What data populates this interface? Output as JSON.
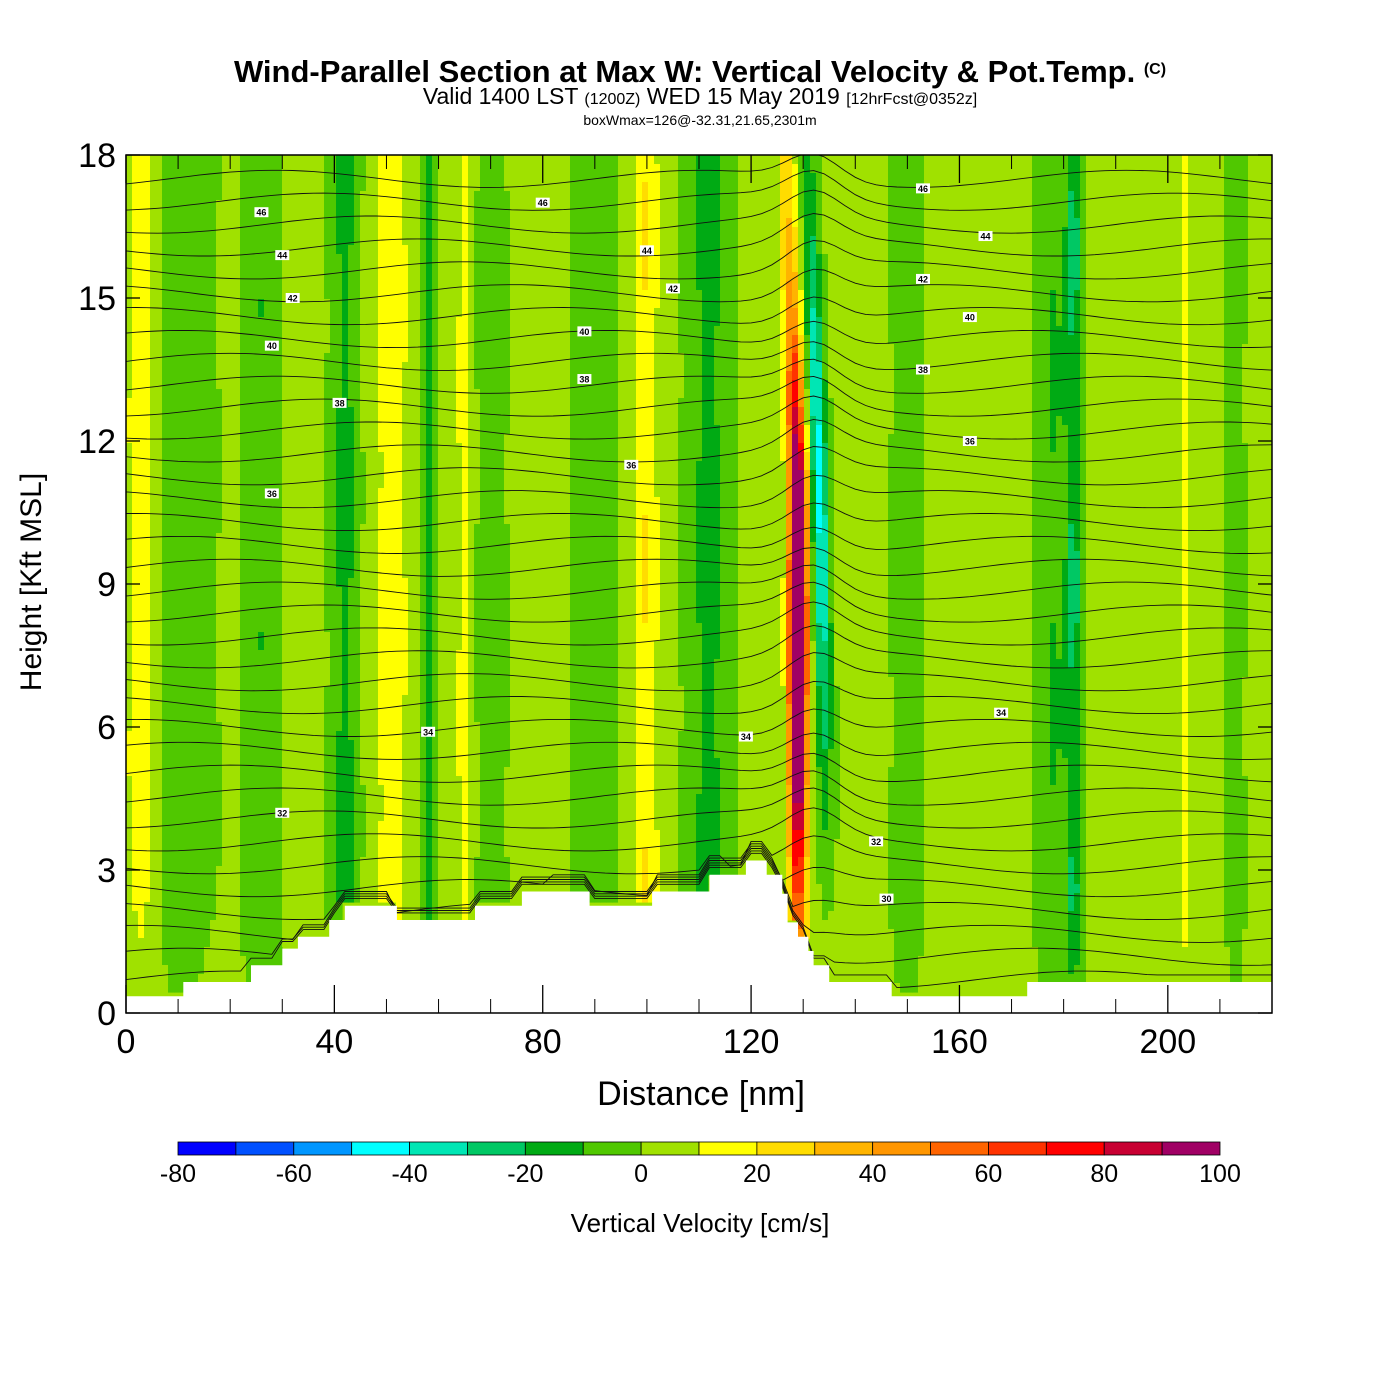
{
  "title": {
    "main": "Wind-Parallel Section at Max W: Vertical Velocity & Pot.Temp.",
    "copyright": "(C)",
    "valid_prefix": "Valid 1400 LST",
    "valid_z": "(1200Z)",
    "valid_date": "WED 15 May 2019",
    "forecast": "[12hrFcst@0352z]",
    "box_info": "boxWmax=126@-32.31,21.65,2301m"
  },
  "chart_data": {
    "type": "heatmap",
    "title": "Wind-Parallel Section at Max W: Vertical Velocity & Pot.Temp.",
    "xlabel": "Distance [nm]",
    "ylabel": "Height [Kft MSL]",
    "xlim": [
      0,
      220
    ],
    "ylim": [
      0,
      18
    ],
    "xticks": [
      "0",
      "40",
      "80",
      "120",
      "160",
      "200"
    ],
    "yticks": [
      "0",
      "3",
      "6",
      "9",
      "12",
      "15",
      "18"
    ],
    "colorbar": {
      "label": "Vertical Velocity [cm/s]",
      "levels": [
        -80,
        -70,
        -60,
        -50,
        -40,
        -30,
        -20,
        -10,
        0,
        10,
        20,
        30,
        40,
        50,
        60,
        70,
        80,
        90,
        100
      ],
      "tick_labels": [
        "-80",
        "-60",
        "-40",
        "-20",
        "0",
        "20",
        "40",
        "60",
        "80",
        "100"
      ],
      "colors": [
        "#0000ff",
        "#0050ff",
        "#0096ff",
        "#00ffff",
        "#00e6b4",
        "#00c864",
        "#00aa14",
        "#50c800",
        "#a0e100",
        "#ffff00",
        "#ffdc00",
        "#ffb400",
        "#ff9600",
        "#ff6400",
        "#ff3200",
        "#ff0000",
        "#c80032",
        "#a00064"
      ]
    },
    "background_w": 2,
    "bands": [
      {
        "x": 3,
        "w": 3,
        "cms": 18
      },
      {
        "x": 10,
        "w": 7,
        "cms": -8
      },
      {
        "x": 26,
        "w": 3,
        "cms": -12
      },
      {
        "x": 42,
        "w": 2.5,
        "cms": -18
      },
      {
        "x": 51,
        "w": 3,
        "cms": 18
      },
      {
        "x": 58,
        "w": 1.2,
        "cms": -22
      },
      {
        "x": 65,
        "w": 1.5,
        "cms": 15
      },
      {
        "x": 70,
        "w": 3,
        "cms": -8
      },
      {
        "x": 90,
        "w": 4,
        "cms": -10
      },
      {
        "x": 100,
        "w": 2.2,
        "cms": 20
      },
      {
        "x": 112,
        "w": 4,
        "cms": -18
      },
      {
        "x": 150,
        "w": 3,
        "cms": -8
      },
      {
        "x": 178,
        "w": 3,
        "cms": -14
      },
      {
        "x": 182,
        "w": 1.5,
        "cms": -25
      },
      {
        "x": 203,
        "w": 1,
        "cms": 15
      },
      {
        "x": 213,
        "w": 2,
        "cms": -6
      }
    ],
    "updraft": {
      "peak_cms": 126,
      "x_at_0kft": 129,
      "x_at_18kft": 129,
      "peak_height_kft": 8
    },
    "downdraft": {
      "min_cms": -45,
      "x_at_0kft": 135,
      "x_at_18kft": 132
    },
    "terrain_kft": [
      [
        0,
        0.35
      ],
      [
        11,
        0.65
      ],
      [
        24,
        1.0
      ],
      [
        30,
        1.35
      ],
      [
        33,
        1.6
      ],
      [
        39,
        1.95
      ],
      [
        42,
        2.25
      ],
      [
        52,
        1.95
      ],
      [
        67,
        2.25
      ],
      [
        76,
        2.55
      ],
      [
        89,
        2.25
      ],
      [
        101,
        2.55
      ],
      [
        112,
        2.9
      ],
      [
        119,
        3.2
      ],
      [
        123,
        2.9
      ],
      [
        126,
        2.5
      ],
      [
        127,
        1.9
      ],
      [
        129,
        1.6
      ],
      [
        131,
        1.3
      ],
      [
        132,
        1.0
      ],
      [
        135,
        0.65
      ],
      [
        147,
        0.35
      ],
      [
        173,
        0.65
      ],
      [
        220,
        0.65
      ]
    ],
    "theta_levels_k": [
      30,
      32,
      34,
      36,
      38,
      40,
      42,
      44,
      46
    ],
    "theta_labels": [
      {
        "text": "46",
        "x": 26,
        "y": 16.8
      },
      {
        "text": "44",
        "x": 30,
        "y": 15.9
      },
      {
        "text": "42",
        "x": 32,
        "y": 15.0
      },
      {
        "text": "40",
        "x": 28,
        "y": 14.0
      },
      {
        "text": "38",
        "x": 41,
        "y": 12.8
      },
      {
        "text": "36",
        "x": 28,
        "y": 10.9
      },
      {
        "text": "34",
        "x": 58,
        "y": 5.9
      },
      {
        "text": "32",
        "x": 30,
        "y": 4.2
      },
      {
        "text": "46",
        "x": 80,
        "y": 17.0
      },
      {
        "text": "44",
        "x": 100,
        "y": 16.0
      },
      {
        "text": "42",
        "x": 105,
        "y": 15.2
      },
      {
        "text": "40",
        "x": 88,
        "y": 14.3
      },
      {
        "text": "38",
        "x": 88,
        "y": 13.3
      },
      {
        "text": "36",
        "x": 97,
        "y": 11.5
      },
      {
        "text": "34",
        "x": 119,
        "y": 5.8
      },
      {
        "text": "46",
        "x": 153,
        "y": 17.3
      },
      {
        "text": "44",
        "x": 165,
        "y": 16.3
      },
      {
        "text": "42",
        "x": 153,
        "y": 15.4
      },
      {
        "text": "40",
        "x": 162,
        "y": 14.6
      },
      {
        "text": "38",
        "x": 153,
        "y": 13.5
      },
      {
        "text": "36",
        "x": 162,
        "y": 12.0
      },
      {
        "text": "34",
        "x": 168,
        "y": 6.3
      },
      {
        "text": "32",
        "x": 144,
        "y": 3.6
      },
      {
        "text": "30",
        "x": 146,
        "y": 2.4
      }
    ]
  }
}
